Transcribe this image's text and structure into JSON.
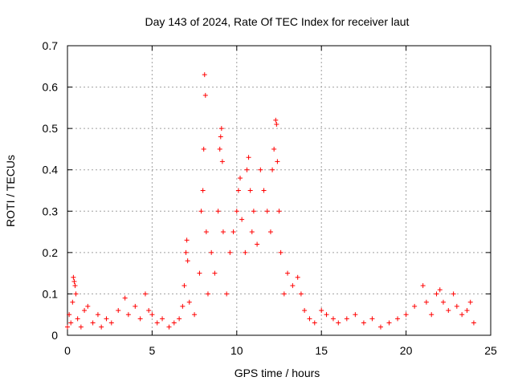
{
  "chart_data": {
    "type": "scatter",
    "title": "Day 143 of 2024, Rate Of TEC Index for receiver laut",
    "xlabel": "GPS time / hours",
    "ylabel": "ROTI / TECUs",
    "xlim": [
      0,
      25
    ],
    "ylim": [
      0,
      0.7
    ],
    "xticks": [
      0,
      5,
      10,
      15,
      20,
      25
    ],
    "xtick_labels": [
      "0",
      "5",
      "10",
      "15",
      "20",
      "25"
    ],
    "yticks": [
      0,
      0.1,
      0.2,
      0.3,
      0.4,
      0.5,
      0.6,
      0.7
    ],
    "ytick_labels": [
      "0",
      "0.1",
      "0.2",
      "0.3",
      "0.4",
      "0.5",
      "0.6",
      "0.7"
    ],
    "grid": true,
    "marker": "+",
    "color": "#ff0000",
    "series": [
      {
        "name": "ROTI",
        "points": [
          [
            0.0,
            0.02
          ],
          [
            0.1,
            0.05
          ],
          [
            0.2,
            0.03
          ],
          [
            0.3,
            0.08
          ],
          [
            0.35,
            0.14
          ],
          [
            0.4,
            0.13
          ],
          [
            0.45,
            0.12
          ],
          [
            0.5,
            0.1
          ],
          [
            0.6,
            0.04
          ],
          [
            0.8,
            0.02
          ],
          [
            1.0,
            0.06
          ],
          [
            1.2,
            0.07
          ],
          [
            1.5,
            0.03
          ],
          [
            1.8,
            0.05
          ],
          [
            2.0,
            0.02
          ],
          [
            2.3,
            0.04
          ],
          [
            2.6,
            0.03
          ],
          [
            3.0,
            0.06
          ],
          [
            3.4,
            0.09
          ],
          [
            3.6,
            0.05
          ],
          [
            4.0,
            0.07
          ],
          [
            4.3,
            0.04
          ],
          [
            4.6,
            0.1
          ],
          [
            4.8,
            0.06
          ],
          [
            5.0,
            0.05
          ],
          [
            5.3,
            0.03
          ],
          [
            5.6,
            0.04
          ],
          [
            6.0,
            0.02
          ],
          [
            6.3,
            0.03
          ],
          [
            6.6,
            0.04
          ],
          [
            6.8,
            0.07
          ],
          [
            6.9,
            0.12
          ],
          [
            7.0,
            0.2
          ],
          [
            7.05,
            0.23
          ],
          [
            7.1,
            0.18
          ],
          [
            7.2,
            0.08
          ],
          [
            7.5,
            0.05
          ],
          [
            7.8,
            0.15
          ],
          [
            7.9,
            0.3
          ],
          [
            8.0,
            0.35
          ],
          [
            8.05,
            0.45
          ],
          [
            8.1,
            0.63
          ],
          [
            8.15,
            0.58
          ],
          [
            8.2,
            0.25
          ],
          [
            8.3,
            0.1
          ],
          [
            8.5,
            0.2
          ],
          [
            8.7,
            0.15
          ],
          [
            8.9,
            0.3
          ],
          [
            9.0,
            0.45
          ],
          [
            9.05,
            0.48
          ],
          [
            9.1,
            0.5
          ],
          [
            9.15,
            0.42
          ],
          [
            9.2,
            0.25
          ],
          [
            9.4,
            0.1
          ],
          [
            9.6,
            0.2
          ],
          [
            9.8,
            0.25
          ],
          [
            10.0,
            0.3
          ],
          [
            10.1,
            0.35
          ],
          [
            10.2,
            0.38
          ],
          [
            10.3,
            0.28
          ],
          [
            10.5,
            0.2
          ],
          [
            10.6,
            0.4
          ],
          [
            10.7,
            0.43
          ],
          [
            10.8,
            0.35
          ],
          [
            10.9,
            0.25
          ],
          [
            11.0,
            0.3
          ],
          [
            11.2,
            0.22
          ],
          [
            11.4,
            0.4
          ],
          [
            11.6,
            0.35
          ],
          [
            11.8,
            0.3
          ],
          [
            12.0,
            0.25
          ],
          [
            12.1,
            0.4
          ],
          [
            12.2,
            0.45
          ],
          [
            12.3,
            0.52
          ],
          [
            12.35,
            0.51
          ],
          [
            12.4,
            0.42
          ],
          [
            12.5,
            0.3
          ],
          [
            12.6,
            0.2
          ],
          [
            12.8,
            0.1
          ],
          [
            13.0,
            0.15
          ],
          [
            13.3,
            0.12
          ],
          [
            13.6,
            0.14
          ],
          [
            13.8,
            0.1
          ],
          [
            14.0,
            0.06
          ],
          [
            14.3,
            0.04
          ],
          [
            14.6,
            0.03
          ],
          [
            15.0,
            0.06
          ],
          [
            15.3,
            0.05
          ],
          [
            15.7,
            0.04
          ],
          [
            16.0,
            0.03
          ],
          [
            16.5,
            0.04
          ],
          [
            17.0,
            0.05
          ],
          [
            17.5,
            0.03
          ],
          [
            18.0,
            0.04
          ],
          [
            18.5,
            0.02
          ],
          [
            19.0,
            0.03
          ],
          [
            19.5,
            0.04
          ],
          [
            20.0,
            0.05
          ],
          [
            20.5,
            0.07
          ],
          [
            21.0,
            0.12
          ],
          [
            21.2,
            0.08
          ],
          [
            21.5,
            0.05
          ],
          [
            21.8,
            0.1
          ],
          [
            22.0,
            0.11
          ],
          [
            22.2,
            0.08
          ],
          [
            22.5,
            0.06
          ],
          [
            22.8,
            0.1
          ],
          [
            23.0,
            0.07
          ],
          [
            23.3,
            0.05
          ],
          [
            23.6,
            0.06
          ],
          [
            23.8,
            0.08
          ],
          [
            24.0,
            0.03
          ]
        ]
      }
    ]
  }
}
